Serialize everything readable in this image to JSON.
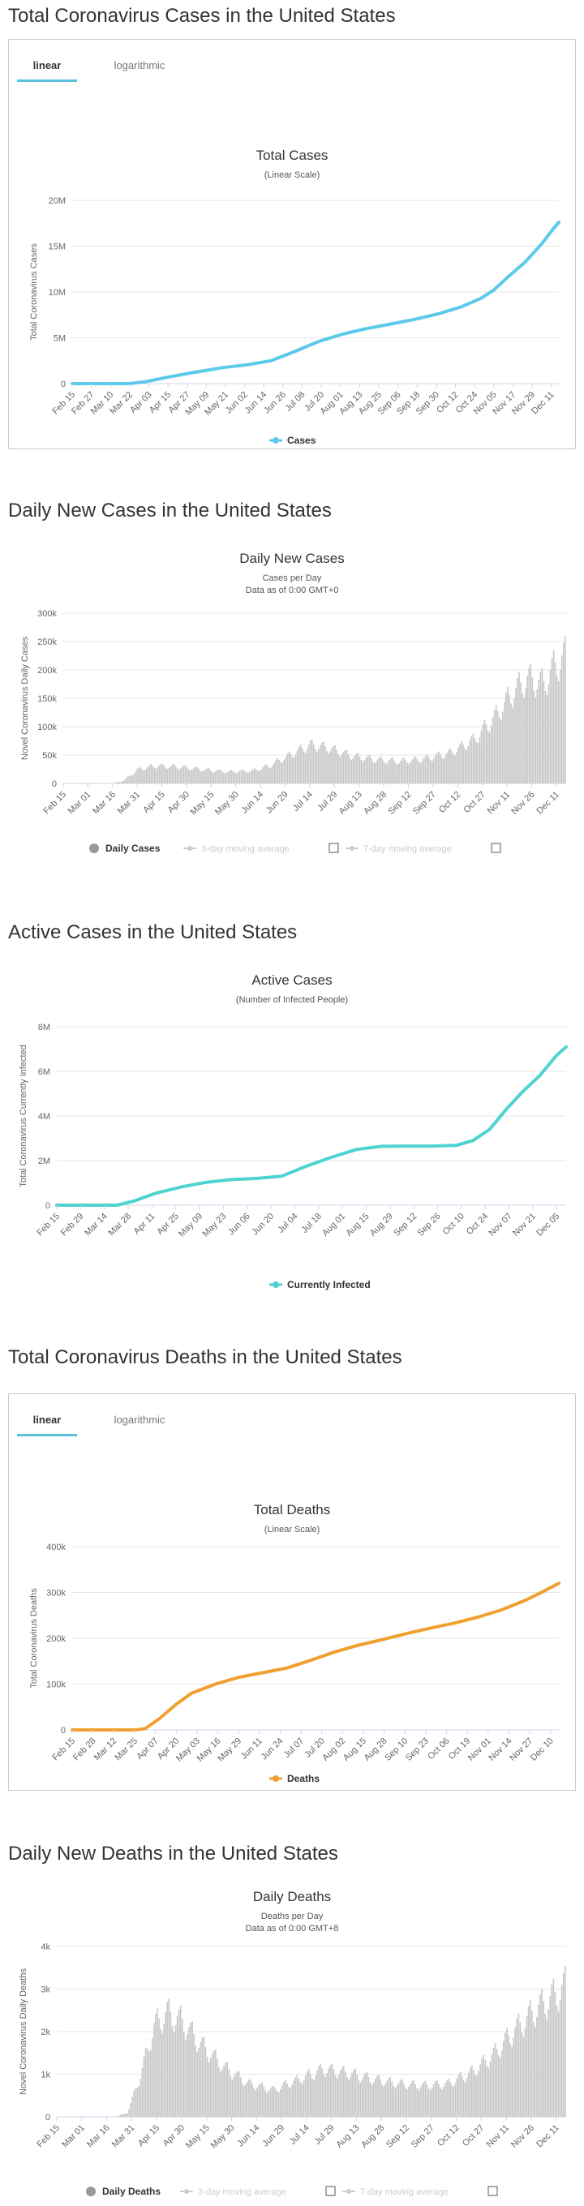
{
  "sections": [
    {
      "heading": "Total Coronavirus Cases in the United States",
      "tabs": [
        "linear",
        "logarithmic"
      ],
      "chart_data": {
        "type": "line",
        "title": "Total Cases",
        "subtitle": "(Linear Scale)",
        "ylabel": "Total Coronavirus Cases",
        "xlabel": "",
        "ylim": [
          0,
          20000000
        ],
        "yticks": [
          {
            "v": 0,
            "label": "0"
          },
          {
            "v": 5000000,
            "label": "5M"
          },
          {
            "v": 10000000,
            "label": "10M"
          },
          {
            "v": 15000000,
            "label": "15M"
          },
          {
            "v": 20000000,
            "label": "20M"
          }
        ],
        "xticks": [
          "Feb 15",
          "Feb 27",
          "Mar 10",
          "Mar 22",
          "Apr 03",
          "Apr 15",
          "Apr 27",
          "May 09",
          "May 21",
          "Jun 02",
          "Jun 14",
          "Jun 26",
          "Jul 08",
          "Jul 20",
          "Aug 01",
          "Aug 13",
          "Aug 25",
          "Sep 06",
          "Sep 18",
          "Sep 30",
          "Oct 12",
          "Oct 24",
          "Nov 05",
          "Nov 17",
          "Nov 29",
          "Dec 11"
        ],
        "x_start": "Feb 15",
        "x_end": "Dec 17",
        "grid": true,
        "legend": "bottom",
        "color": "#5bc9ea",
        "series": [
          {
            "name": "Cases",
            "points": [
              [
                0,
                0
              ],
              [
                36,
                0
              ],
              [
                46,
                200000
              ],
              [
                60,
                700000
              ],
              [
                76,
                1200000
              ],
              [
                95,
                1750000
              ],
              [
                110,
                2050000
              ],
              [
                125,
                2500000
              ],
              [
                140,
                3500000
              ],
              [
                155,
                4600000
              ],
              [
                170,
                5400000
              ],
              [
                185,
                6000000
              ],
              [
                200,
                6500000
              ],
              [
                215,
                7000000
              ],
              [
                230,
                7600000
              ],
              [
                245,
                8400000
              ],
              [
                257,
                9300000
              ],
              [
                265,
                10200000
              ],
              [
                275,
                11800000
              ],
              [
                285,
                13300000
              ],
              [
                295,
                15200000
              ],
              [
                303,
                17000000
              ],
              [
                306,
                17600000
              ]
            ]
          }
        ]
      }
    },
    {
      "heading": "Daily New Cases in the United States",
      "chart_data": {
        "type": "bar",
        "title": "Daily New Cases",
        "subtitle": "Cases per Day",
        "subtitle2": "Data as of 0:00 GMT+0",
        "ylabel": "Novel Coronavirus Daily Cases",
        "ylim": [
          0,
          300000
        ],
        "yticks": [
          {
            "v": 0,
            "label": "0"
          },
          {
            "v": 50000,
            "label": "50k"
          },
          {
            "v": 100000,
            "label": "100k"
          },
          {
            "v": 150000,
            "label": "150k"
          },
          {
            "v": 200000,
            "label": "200k"
          },
          {
            "v": 250000,
            "label": "250k"
          },
          {
            "v": 300000,
            "label": "300k"
          }
        ],
        "xticks": [
          "Feb 15",
          "Mar 01",
          "Mar 16",
          "Mar 31",
          "Apr 15",
          "Apr 30",
          "May 15",
          "May 30",
          "Jun 14",
          "Jun 29",
          "Jul 14",
          "Jul 29",
          "Aug 13",
          "Aug 28",
          "Sep 12",
          "Sep 27",
          "Oct 12",
          "Oct 27",
          "Nov 11",
          "Nov 26",
          "Dec 11"
        ],
        "x_start": "Feb 15",
        "x_end": "Dec 17",
        "grid": true,
        "legend": "bottom",
        "color": "#c8c8c8",
        "profile": [
          [
            0,
            0
          ],
          [
            30,
            0
          ],
          [
            36,
            5000
          ],
          [
            45,
            25000
          ],
          [
            55,
            32000
          ],
          [
            70,
            30000
          ],
          [
            85,
            25000
          ],
          [
            100,
            21000
          ],
          [
            115,
            23000
          ],
          [
            125,
            32000
          ],
          [
            140,
            55000
          ],
          [
            150,
            70000
          ],
          [
            160,
            65000
          ],
          [
            175,
            50000
          ],
          [
            190,
            43000
          ],
          [
            205,
            40000
          ],
          [
            220,
            45000
          ],
          [
            235,
            55000
          ],
          [
            250,
            80000
          ],
          [
            262,
            120000
          ],
          [
            272,
            160000
          ],
          [
            282,
            190000
          ],
          [
            292,
            180000
          ],
          [
            298,
            210000
          ],
          [
            306,
            235000
          ]
        ],
        "legend_items": [
          "Daily Cases",
          "3-day moving average",
          "7-day moving average"
        ]
      }
    },
    {
      "heading": "Active Cases in the United States",
      "chart_data": {
        "type": "line",
        "title": "Active Cases",
        "subtitle": "(Number of Infected People)",
        "ylabel": "Total Coronavirus Currently Infected",
        "ylim": [
          0,
          8000000
        ],
        "yticks": [
          {
            "v": 0,
            "label": "0"
          },
          {
            "v": 2000000,
            "label": "2M"
          },
          {
            "v": 4000000,
            "label": "4M"
          },
          {
            "v": 6000000,
            "label": "6M"
          },
          {
            "v": 8000000,
            "label": "8M"
          }
        ],
        "xticks": [
          "Feb 15",
          "Feb 29",
          "Mar 14",
          "Mar 28",
          "Apr 11",
          "Apr 25",
          "May 09",
          "May 23",
          "Jun 06",
          "Jun 20",
          "Jul 04",
          "Jul 18",
          "Aug 01",
          "Aug 15",
          "Aug 29",
          "Sep 12",
          "Sep 26",
          "Oct 10",
          "Oct 24",
          "Nov 07",
          "Nov 21",
          "Dec 05"
        ],
        "x_start": "Feb 15",
        "x_end": "Dec 17",
        "grid": true,
        "legend": "bottom",
        "color": "#4fd3d0",
        "series": [
          {
            "name": "Currently Infected",
            "points": [
              [
                0,
                0
              ],
              [
                36,
                0
              ],
              [
                46,
                180000
              ],
              [
                60,
                550000
              ],
              [
                75,
                820000
              ],
              [
                90,
                1030000
              ],
              [
                105,
                1150000
              ],
              [
                120,
                1200000
              ],
              [
                135,
                1300000
              ],
              [
                150,
                1750000
              ],
              [
                165,
                2150000
              ],
              [
                180,
                2500000
              ],
              [
                195,
                2640000
              ],
              [
                210,
                2650000
              ],
              [
                225,
                2650000
              ],
              [
                240,
                2680000
              ],
              [
                250,
                2900000
              ],
              [
                260,
                3400000
              ],
              [
                270,
                4300000
              ],
              [
                280,
                5100000
              ],
              [
                290,
                5800000
              ],
              [
                300,
                6700000
              ],
              [
                306,
                7100000
              ]
            ]
          }
        ]
      }
    },
    {
      "heading": "Total Coronavirus Deaths in the United States",
      "tabs": [
        "linear",
        "logarithmic"
      ],
      "chart_data": {
        "type": "line",
        "title": "Total Deaths",
        "subtitle": "(Linear Scale)",
        "ylabel": "Total Coronavirus Deaths",
        "ylim": [
          0,
          400000
        ],
        "yticks": [
          {
            "v": 0,
            "label": "0"
          },
          {
            "v": 100000,
            "label": "100k"
          },
          {
            "v": 200000,
            "label": "200k"
          },
          {
            "v": 300000,
            "label": "300k"
          },
          {
            "v": 400000,
            "label": "400k"
          }
        ],
        "xticks": [
          "Feb 15",
          "Feb 28",
          "Mar 12",
          "Mar 25",
          "Apr 07",
          "Apr 20",
          "May 03",
          "May 16",
          "May 29",
          "Jun 11",
          "Jun 24",
          "Jul 07",
          "Jul 20",
          "Aug 02",
          "Aug 15",
          "Aug 28",
          "Sep 10",
          "Sep 23",
          "Oct 06",
          "Oct 19",
          "Nov 01",
          "Nov 14",
          "Nov 27",
          "Dec 10"
        ],
        "x_start": "Feb 15",
        "x_end": "Dec 17",
        "grid": true,
        "legend": "bottom",
        "color": "#f0a030",
        "series": [
          {
            "name": "Deaths",
            "points": [
              [
                0,
                0
              ],
              [
                40,
                0
              ],
              [
                46,
                3000
              ],
              [
                55,
                25000
              ],
              [
                65,
                55000
              ],
              [
                75,
                80000
              ],
              [
                90,
                100000
              ],
              [
                105,
                115000
              ],
              [
                120,
                125000
              ],
              [
                135,
                135000
              ],
              [
                150,
                152000
              ],
              [
                165,
                170000
              ],
              [
                180,
                185000
              ],
              [
                195,
                197000
              ],
              [
                210,
                210000
              ],
              [
                225,
                222000
              ],
              [
                240,
                233000
              ],
              [
                255,
                246000
              ],
              [
                270,
                262000
              ],
              [
                285,
                283000
              ],
              [
                295,
                300000
              ],
              [
                306,
                320000
              ]
            ]
          }
        ]
      }
    },
    {
      "heading": "Daily New Deaths in the United States",
      "chart_data": {
        "type": "bar",
        "title": "Daily Deaths",
        "subtitle": "Deaths per Day",
        "subtitle2": "Data as of 0:00 GMT+8",
        "ylabel": "Novel Coronavirus Daily Deaths",
        "ylim": [
          0,
          4000
        ],
        "yticks": [
          {
            "v": 0,
            "label": "0"
          },
          {
            "v": 1000,
            "label": "1k"
          },
          {
            "v": 2000,
            "label": "2k"
          },
          {
            "v": 3000,
            "label": "3k"
          },
          {
            "v": 4000,
            "label": "4k"
          }
        ],
        "xticks": [
          "Feb 15",
          "Mar 01",
          "Mar 16",
          "Mar 31",
          "Apr 15",
          "Apr 30",
          "May 15",
          "May 30",
          "Jun 14",
          "Jun 29",
          "Jul 14",
          "Jul 29",
          "Aug 13",
          "Aug 28",
          "Sep 12",
          "Sep 27",
          "Oct 12",
          "Oct 27",
          "Nov 11",
          "Nov 26",
          "Dec 11"
        ],
        "x_start": "Feb 15",
        "x_end": "Dec 17",
        "grid": true,
        "legend": "bottom",
        "color": "#c8c8c8",
        "profile": [
          [
            0,
            0
          ],
          [
            35,
            0
          ],
          [
            42,
            100
          ],
          [
            50,
            1000
          ],
          [
            58,
            2200
          ],
          [
            66,
            2500
          ],
          [
            75,
            2300
          ],
          [
            85,
            1800
          ],
          [
            100,
            1200
          ],
          [
            115,
            800
          ],
          [
            130,
            650
          ],
          [
            145,
            900
          ],
          [
            160,
            1150
          ],
          [
            175,
            1050
          ],
          [
            190,
            900
          ],
          [
            205,
            800
          ],
          [
            220,
            750
          ],
          [
            235,
            800
          ],
          [
            250,
            1100
          ],
          [
            262,
            1500
          ],
          [
            275,
            2100
          ],
          [
            288,
            2600
          ],
          [
            298,
            2900
          ],
          [
            306,
            3200
          ]
        ],
        "legend_items": [
          "Daily Deaths",
          "3-day moving average",
          "7-day moving average"
        ]
      }
    }
  ]
}
